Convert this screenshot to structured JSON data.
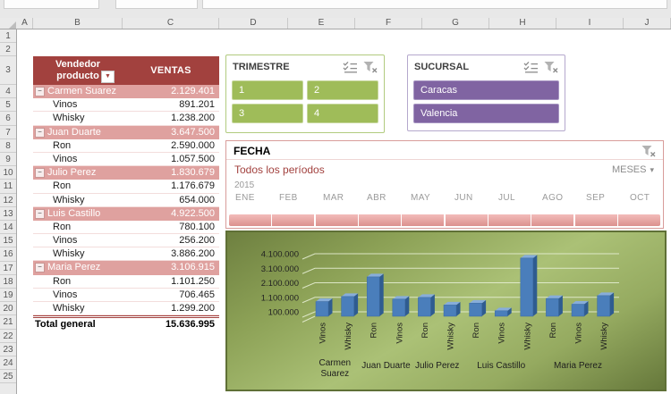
{
  "colors": {
    "pivot_header_red": "#A2413E",
    "pivot_subtotal_pink": "#DFA19F",
    "slicer_green": "#9FBC59",
    "slicer_green_border": "#C6D79C",
    "slicer_green_frame": "#B1CB7F",
    "slicer_purple": "#8064A2",
    "slicer_purple_border": "#A796C2",
    "slicer_purple_frame": "#B5A8CD",
    "timeline_bar_top": "#F3BCBA",
    "timeline_bar_bottom": "#DB918E",
    "chart_bar_blue": "#4A7EBB",
    "chart_bar_side": "#2F5C90",
    "chart_bar_top": "#87ADDA"
  },
  "chrome": {
    "column_headers": [
      "A",
      "B",
      "C",
      "D",
      "E",
      "F",
      "G",
      "H",
      "I",
      "J"
    ],
    "row_numbers": [
      "1",
      "2",
      "3",
      "4",
      "5",
      "6",
      "7",
      "8",
      "9",
      "10",
      "11",
      "12",
      "13",
      "14",
      "15",
      "16",
      "17",
      "18",
      "19",
      "20",
      "21",
      "22",
      "23",
      "24",
      "25"
    ]
  },
  "icons": {
    "collapse": "−",
    "dropdown": "▼",
    "caret": "▾"
  },
  "pivot": {
    "header": {
      "row_label_line1": "Vendedor",
      "row_label_line2": "producto",
      "value_label": "VENTAS"
    },
    "rows": [
      {
        "type": "subtotal",
        "label": "Carmen Suarez",
        "value": "2.129.401"
      },
      {
        "type": "detail",
        "label": "Vinos",
        "value": "891.201"
      },
      {
        "type": "detail",
        "label": "Whisky",
        "value": "1.238.200"
      },
      {
        "type": "subtotal",
        "label": "Juan Duarte",
        "value": "3.647.500"
      },
      {
        "type": "detail",
        "label": "Ron",
        "value": "2.590.000"
      },
      {
        "type": "detail",
        "label": "Vinos",
        "value": "1.057.500"
      },
      {
        "type": "subtotal",
        "label": "Julio Perez",
        "value": "1.830.679"
      },
      {
        "type": "detail",
        "label": "Ron",
        "value": "1.176.679"
      },
      {
        "type": "detail",
        "label": "Whisky",
        "value": "654.000"
      },
      {
        "type": "subtotal",
        "label": "Luis Castillo",
        "value": "4.922.500"
      },
      {
        "type": "detail",
        "label": "Ron",
        "value": "780.100"
      },
      {
        "type": "detail",
        "label": "Vinos",
        "value": "256.200"
      },
      {
        "type": "detail",
        "label": "Whisky",
        "value": "3.886.200"
      },
      {
        "type": "subtotal",
        "label": "Maria Perez",
        "value": "3.106.915"
      },
      {
        "type": "detail",
        "label": "Ron",
        "value": "1.101.250"
      },
      {
        "type": "detail",
        "label": "Vinos",
        "value": "706.465"
      },
      {
        "type": "detail",
        "label": "Whisky",
        "value": "1.299.200"
      },
      {
        "type": "total",
        "label": "Total general",
        "value": "15.636.995"
      }
    ]
  },
  "slicers": [
    {
      "id": "trimestre",
      "title": "TRIMESTRE",
      "items": [
        "1",
        "2",
        "3",
        "4"
      ]
    },
    {
      "id": "sucursal",
      "title": "SUCURSAL",
      "items": [
        "Caracas",
        "Valencia"
      ]
    }
  ],
  "timeline": {
    "title": "FECHA",
    "period": "Todos los períodos",
    "granularity": "MESES",
    "year": "2015",
    "months": [
      "ENE",
      "FEB",
      "MAR",
      "ABR",
      "MAY",
      "JUN",
      "JUL",
      "AGO",
      "SEP",
      "OCT"
    ]
  },
  "chart_data": {
    "type": "bar",
    "style": "3d-clustered",
    "title": "",
    "xlabel": "",
    "ylabel": "",
    "legend": "none",
    "grid": true,
    "ylim": [
      0,
      4600000
    ],
    "y_ticks": [
      "4.100.000",
      "3.100.000",
      "2.100.000",
      "1.100.000",
      "100.000"
    ],
    "y_tick_values": [
      4100000,
      3100000,
      2100000,
      1100000,
      100000
    ],
    "bars": [
      {
        "group": "Carmen Suarez",
        "product": "Vinos",
        "value": 891201
      },
      {
        "group": "Carmen Suarez",
        "product": "Whisky",
        "value": 1238200
      },
      {
        "group": "Juan Duarte",
        "product": "Ron",
        "value": 2590000
      },
      {
        "group": "Juan Duarte",
        "product": "Vinos",
        "value": 1057500
      },
      {
        "group": "Julio Perez",
        "product": "Ron",
        "value": 1176679
      },
      {
        "group": "Julio Perez",
        "product": "Whisky",
        "value": 654000
      },
      {
        "group": "Luis Castillo",
        "product": "Ron",
        "value": 780100
      },
      {
        "group": "Luis Castillo",
        "product": "Vinos",
        "value": 256200
      },
      {
        "group": "Luis Castillo",
        "product": "Whisky",
        "value": 3886200
      },
      {
        "group": "Maria Perez",
        "product": "Ron",
        "value": 1101250
      },
      {
        "group": "Maria Perez",
        "product": "Vinos",
        "value": 706465
      },
      {
        "group": "Maria Perez",
        "product": "Whisky",
        "value": 1299200
      }
    ]
  }
}
